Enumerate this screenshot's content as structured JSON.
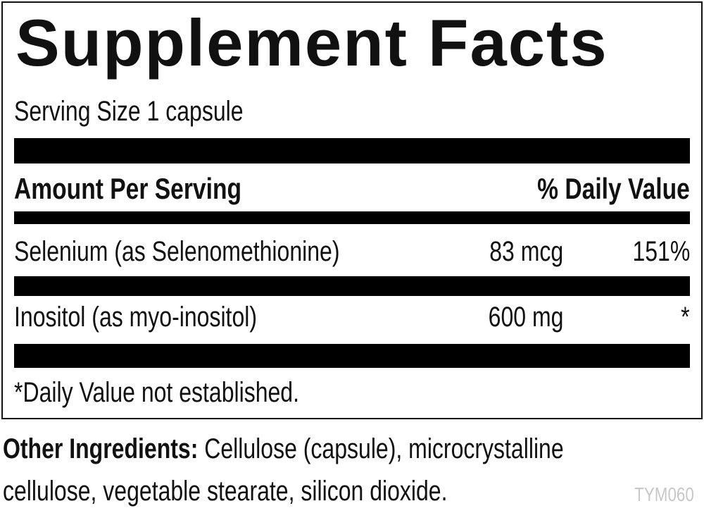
{
  "header": {
    "title": "Supplement Facts",
    "serving_size": "Serving Size 1 capsule"
  },
  "table": {
    "header": [
      "Amount Per Serving",
      "% Daily Value"
    ],
    "rows": [
      [
        "Selenium (as Selenomethionine)",
        "83 mcg",
        "151%"
      ],
      [
        "Inositol (as myo-inositol)",
        "600 mg",
        "*"
      ]
    ]
  },
  "footnote": "*Daily Value not established.",
  "other_ingredients": {
    "label": "Other Ingredients:",
    "lines": [
      "Cellulose (capsule), microcrystalline",
      "cellulose, vegetable stearate, silicon dioxide."
    ]
  },
  "code": "TYM060"
}
